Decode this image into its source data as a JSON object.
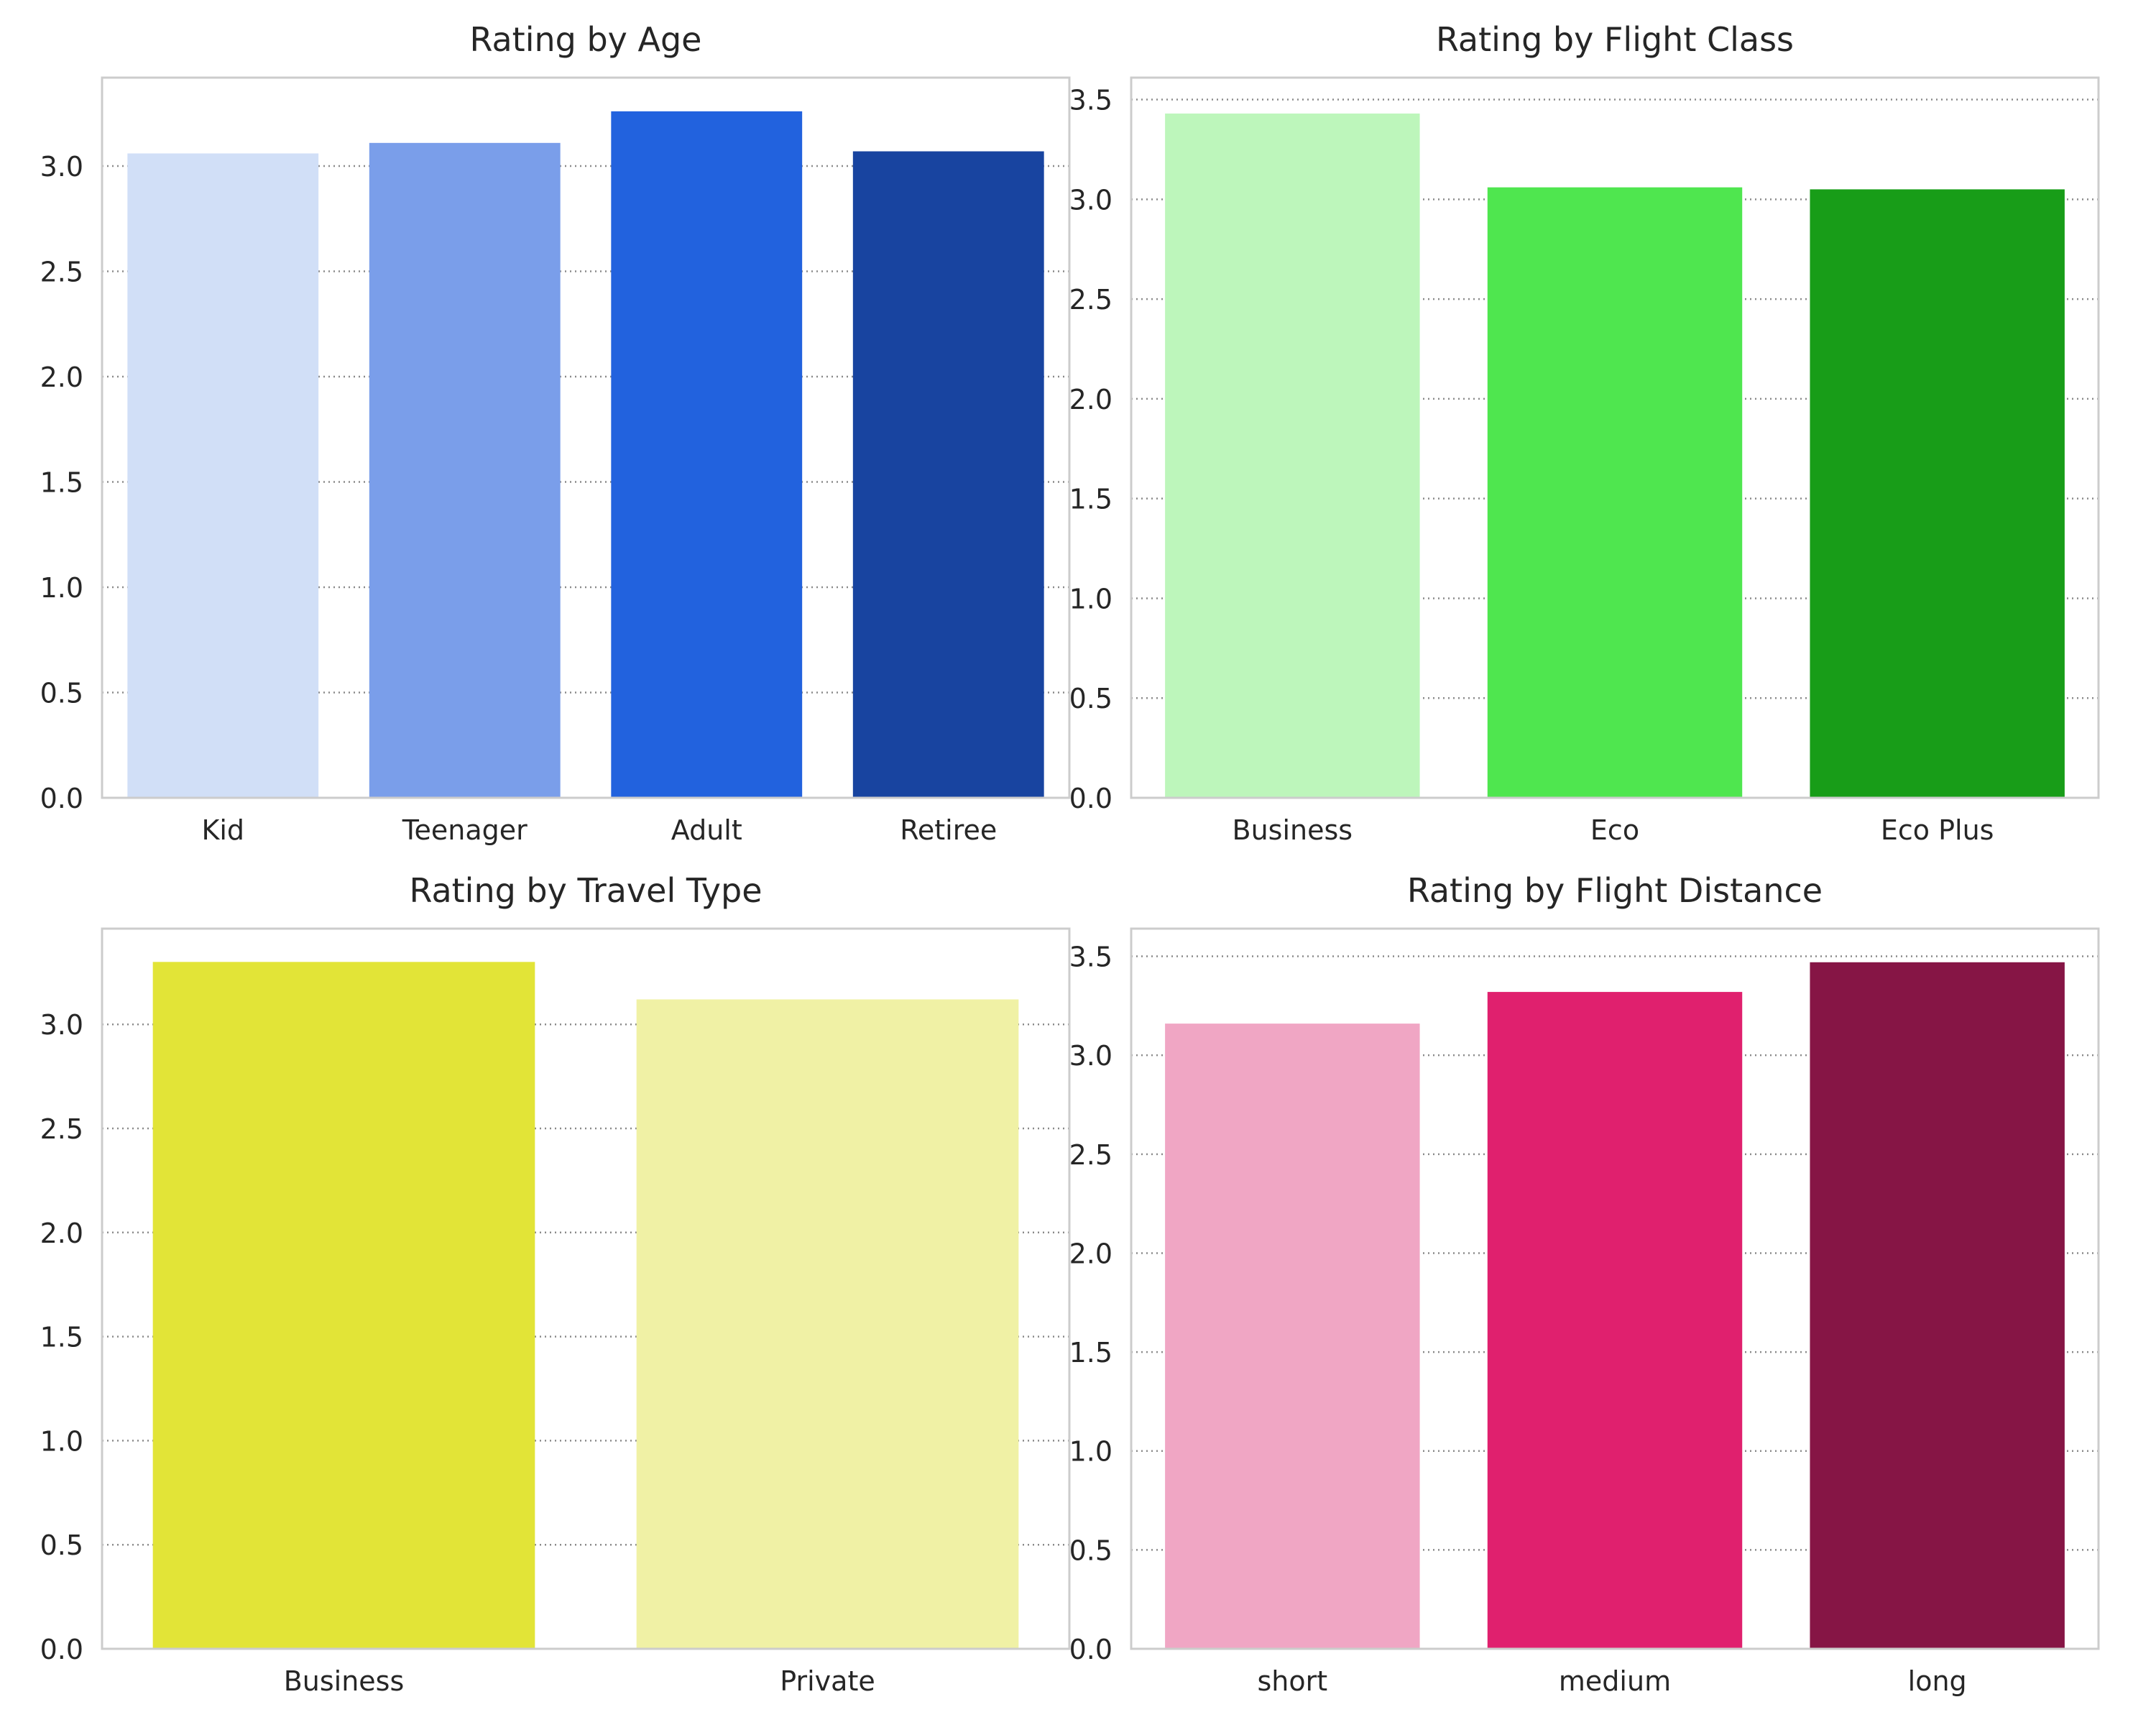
{
  "chart_data": [
    {
      "type": "bar",
      "title": "Rating by Age",
      "xlabel": "",
      "ylabel": "",
      "categories": [
        "Kid",
        "Teenager",
        "Adult",
        "Retiree"
      ],
      "values": [
        3.06,
        3.11,
        3.26,
        3.07
      ],
      "colors": [
        "#d1dff7",
        "#7a9eea",
        "#2262de",
        "#1844a0"
      ],
      "ylim": [
        0,
        3.42
      ],
      "yticks": [
        "0.0",
        "0.5",
        "1.0",
        "1.5",
        "2.0",
        "2.5",
        "3.0"
      ],
      "grid": "horizontal-dotted"
    },
    {
      "type": "bar",
      "title": "Rating by Flight Class",
      "xlabel": "",
      "ylabel": "",
      "categories": [
        "Business",
        "Eco",
        "Eco Plus"
      ],
      "values": [
        3.43,
        3.06,
        3.05
      ],
      "colors": [
        "#bdf6bb",
        "#4fe64f",
        "#189d18"
      ],
      "ylim": [
        0,
        3.61
      ],
      "yticks": [
        "0.0",
        "0.5",
        "1.0",
        "1.5",
        "2.0",
        "2.5",
        "3.0",
        "3.5"
      ],
      "grid": "horizontal-dotted"
    },
    {
      "type": "bar",
      "title": "Rating by Travel Type",
      "xlabel": "",
      "ylabel": "",
      "categories": [
        "Business",
        "Private"
      ],
      "values": [
        3.3,
        3.12
      ],
      "colors": [
        "#e2e437",
        "#f0f1a5"
      ],
      "ylim": [
        0,
        3.46
      ],
      "yticks": [
        "0.0",
        "0.5",
        "1.0",
        "1.5",
        "2.0",
        "2.5",
        "3.0"
      ],
      "grid": "horizontal-dotted"
    },
    {
      "type": "bar",
      "title": "Rating by Flight Distance",
      "xlabel": "",
      "ylabel": "",
      "categories": [
        "short",
        "medium",
        "long"
      ],
      "values": [
        3.16,
        3.32,
        3.47
      ],
      "colors": [
        "#f0a6c4",
        "#e0206e",
        "#861545"
      ],
      "ylim": [
        0,
        3.64
      ],
      "yticks": [
        "0.0",
        "0.5",
        "1.0",
        "1.5",
        "2.0",
        "2.5",
        "3.0",
        "3.5"
      ],
      "grid": "horizontal-dotted"
    }
  ]
}
